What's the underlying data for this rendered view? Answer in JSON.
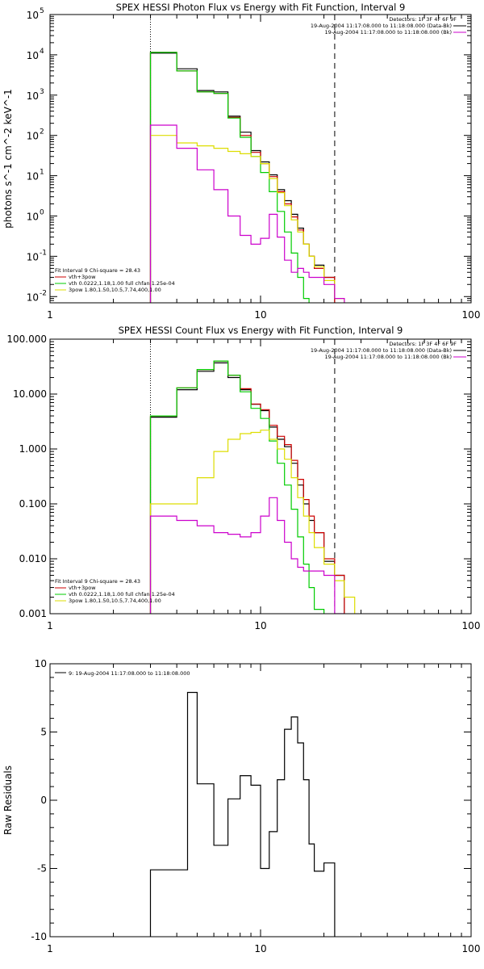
{
  "chart_data": [
    {
      "type": "line",
      "title": "SPEX HESSI Photon Flux vs Energy with Fit Function, Interval 9",
      "ylabel": "photons s^-1 cm^-2 keV^-1",
      "xlabel": "",
      "xscale": "log",
      "yscale": "log",
      "xlim": [
        1,
        100
      ],
      "ylim": [
        0.007,
        100000
      ],
      "xticks": [
        "1",
        "10",
        "100"
      ],
      "yticks": [
        {
          "v": 0.01,
          "base": "10",
          "exp": "-2"
        },
        {
          "v": 0.1,
          "base": "10",
          "exp": "-1"
        },
        {
          "v": 1,
          "base": "10",
          "exp": "0"
        },
        {
          "v": 10,
          "base": "10",
          "exp": "1"
        },
        {
          "v": 100,
          "base": "10",
          "exp": "2"
        },
        {
          "v": 1000,
          "base": "10",
          "exp": "3"
        },
        {
          "v": 10000,
          "base": "10",
          "exp": "4"
        },
        {
          "v": 100000,
          "base": "10",
          "exp": "5"
        }
      ],
      "vlines": [
        {
          "x": 3.0,
          "style": "dotted"
        },
        {
          "x": 22.5,
          "style": "dashed"
        }
      ],
      "legend_right": {
        "header": "Detectors: 1F 3F 4F 6F 9F",
        "entries": [
          {
            "text": "19-Aug-2004 11:17:08.000 to 11:18:08.000 (Data-Bk)",
            "color": "#000000"
          },
          {
            "text": "19-Aug-2004 11:17:08.000 to 11:18:08.000 (Bk)",
            "color": "#cc00cc"
          }
        ]
      },
      "legend_left": {
        "header": "Fit Interval 9   Chi-square = 28.43",
        "entries": [
          {
            "text": "vth+3pow",
            "color": "#cc0000"
          },
          {
            "text": "vth 0.0222,1.18,1.00  full chfan 1.25e-04",
            "color": "#00cc00"
          },
          {
            "text": "3pow 1.80,1.50,10.5,7.74,400,1.00",
            "color": "#dddd00"
          }
        ]
      },
      "edges": [
        3,
        4,
        5,
        6,
        7,
        8,
        9,
        10,
        11,
        12,
        13,
        14,
        15,
        16,
        17,
        18,
        20,
        22.5,
        25,
        28
      ],
      "series": [
        {
          "role": "Data-Bk",
          "color": "#000000",
          "values": [
            11000,
            4500,
            1300,
            1200,
            300,
            120,
            42,
            22,
            10.5,
            4.5,
            2.4,
            1.1,
            0.5,
            0.2,
            0.1,
            0.06,
            0.03,
            null,
            null
          ]
        },
        {
          "role": "vth+3pow",
          "color": "#cc0000",
          "values": [
            11500,
            4000,
            1200,
            1100,
            280,
            100,
            38,
            20,
            9.5,
            4.0,
            2.0,
            0.95,
            0.45,
            0.2,
            0.1,
            0.05,
            0.03,
            null,
            null
          ]
        },
        {
          "role": "vth",
          "color": "#00cc00",
          "values": [
            11500,
            4000,
            1200,
            1100,
            270,
            90,
            30,
            12,
            4.0,
            1.3,
            0.4,
            0.12,
            0.03,
            0.009,
            null,
            null,
            null,
            null,
            null
          ]
        },
        {
          "role": "3pow",
          "color": "#dddd00",
          "values": [
            100,
            65,
            55,
            48,
            40,
            35,
            30,
            20,
            8.5,
            3.8,
            1.8,
            0.8,
            0.4,
            0.2,
            0.1,
            0.055,
            0.025,
            0.009,
            null
          ]
        },
        {
          "role": "Bk",
          "color": "#cc00cc",
          "values": [
            180,
            48,
            14,
            4.5,
            1.0,
            0.33,
            0.2,
            0.28,
            1.1,
            0.3,
            0.08,
            0.04,
            0.05,
            0.04,
            0.03,
            0.03,
            0.02,
            0.009,
            null
          ]
        }
      ]
    },
    {
      "type": "line",
      "title": "SPEX HESSI Count Flux vs Energy with Fit Function, Interval 9",
      "ylabel": "",
      "xlabel": "",
      "xscale": "log",
      "yscale": "log",
      "xlim": [
        1,
        100
      ],
      "ylim": [
        0.001,
        100
      ],
      "xticks": [
        "1",
        "10",
        "100"
      ],
      "yticks": [
        {
          "v": 0.001,
          "label": "0.001"
        },
        {
          "v": 0.01,
          "label": "0.010"
        },
        {
          "v": 0.1,
          "label": "0.100"
        },
        {
          "v": 1,
          "label": "1.000"
        },
        {
          "v": 10,
          "label": "10.000"
        },
        {
          "v": 100,
          "label": "100.000"
        }
      ],
      "vlines": [
        {
          "x": 3.0,
          "style": "dotted"
        },
        {
          "x": 22.5,
          "style": "dashed"
        }
      ],
      "legend_right": {
        "header": "Detectors: 1F 3F 4F 6F 9F",
        "entries": [
          {
            "text": "19-Aug-2004 11:17:08.000 to 11:18:08.000 (Data-Bk)",
            "color": "#000000"
          },
          {
            "text": "19-Aug-2004 11:17:08.000 to 11:18:08.000 (Bk)",
            "color": "#cc00cc"
          }
        ]
      },
      "legend_left": {
        "header": "Fit Interval 9   Chi-square = 28.43",
        "entries": [
          {
            "text": "vth+3pow",
            "color": "#cc0000"
          },
          {
            "text": "vth 0.0222,1.18,1.00  full chfan 1.25e-04",
            "color": "#00cc00"
          },
          {
            "text": "3pow 1.80,1.50,10.5,7.74,400,1.00",
            "color": "#dddd00"
          }
        ]
      },
      "edges": [
        3,
        4,
        5,
        6,
        7,
        8,
        9,
        10,
        11,
        12,
        13,
        14,
        15,
        16,
        17,
        18,
        20,
        22.5,
        25,
        28
      ],
      "series": [
        {
          "role": "Data-Bk",
          "color": "#000000",
          "values": [
            3.8,
            12,
            26,
            37,
            20,
            12,
            6.5,
            5.0,
            2.5,
            1.5,
            1.1,
            0.55,
            0.22,
            0.1,
            0.05,
            0.03,
            0.009,
            0.005,
            null
          ]
        },
        {
          "role": "vth+3pow",
          "color": "#cc0000",
          "values": [
            4.0,
            13,
            28,
            40,
            22,
            12.5,
            6.6,
            5.2,
            2.7,
            1.7,
            1.2,
            0.62,
            0.28,
            0.12,
            0.06,
            0.03,
            0.01,
            0.005,
            null
          ]
        },
        {
          "role": "vth",
          "color": "#00cc00",
          "values": [
            4.0,
            13,
            28,
            40,
            22,
            11,
            5.5,
            3.6,
            1.4,
            0.55,
            0.22,
            0.08,
            0.025,
            0.008,
            0.003,
            0.0012,
            null,
            null,
            null
          ]
        },
        {
          "role": "3pow",
          "color": "#dddd00",
          "values": [
            0.1,
            0.1,
            0.3,
            0.9,
            1.5,
            1.9,
            2.0,
            2.2,
            1.5,
            1.0,
            0.65,
            0.3,
            0.13,
            0.06,
            0.03,
            0.016,
            0.008,
            0.004,
            0.002
          ]
        },
        {
          "role": "Bk",
          "color": "#cc00cc",
          "values": [
            0.06,
            0.05,
            0.04,
            0.03,
            0.028,
            0.025,
            0.03,
            0.06,
            0.13,
            0.05,
            0.02,
            0.01,
            0.007,
            0.006,
            0.006,
            0.006,
            0.005,
            0.001,
            null
          ]
        }
      ]
    },
    {
      "type": "line",
      "title": "",
      "ylabel": "Raw Residuals",
      "xlabel": "",
      "xscale": "log",
      "yscale": "linear",
      "xlim": [
        1,
        100
      ],
      "ylim": [
        -10,
        10
      ],
      "xticks": [
        "1",
        "10",
        "100"
      ],
      "yticks": [
        {
          "v": -10,
          "label": "-10"
        },
        {
          "v": -5,
          "label": "-5"
        },
        {
          "v": 0,
          "label": "0"
        },
        {
          "v": 5,
          "label": "5"
        },
        {
          "v": 10,
          "label": "10"
        }
      ],
      "legend_left": {
        "header": "",
        "entries": [
          {
            "text": "9: 19-Aug-2004 11:17:08.000 to 11:18:08.000",
            "color": "#000000"
          }
        ]
      },
      "edges": [
        3,
        4,
        4.5,
        5,
        6,
        7,
        7.5,
        8,
        8.5,
        9,
        10,
        11,
        12,
        13,
        14,
        15,
        16,
        17,
        18,
        20,
        22.5
      ],
      "series": [
        {
          "role": "residuals",
          "color": "#000000",
          "values": [
            -5.1,
            -5.1,
            7.9,
            1.2,
            -3.3,
            0.1,
            0.1,
            1.8,
            1.8,
            1.1,
            -5.0,
            -2.3,
            1.5,
            5.2,
            6.1,
            4.2,
            1.5,
            -3.2,
            -5.2,
            -4.6
          ]
        }
      ]
    }
  ]
}
